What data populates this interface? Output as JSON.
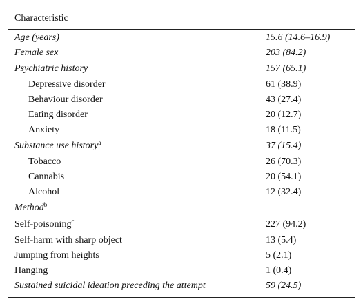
{
  "table": {
    "header": [
      "Characteristic"
    ],
    "rows": [
      {
        "label": "Age (years)",
        "value": "15.6 (14.6–16.9)"
      },
      {
        "label": "Female sex",
        "value": "203 (84.2)"
      },
      {
        "label": "Psychiatric history",
        "value": "157 (65.1)"
      },
      {
        "label": "Depressive disorder",
        "value": "61 (38.9)"
      },
      {
        "label": "Behaviour disorder",
        "value": "43 (27.4)"
      },
      {
        "label": "Eating disorder",
        "value": "20 (12.7)"
      },
      {
        "label": "Anxiety",
        "value": "18 (11.5)"
      },
      {
        "label": "Substance use history",
        "note": "a",
        "value": "37 (15.4)"
      },
      {
        "label": "Tobacco",
        "value": "26 (70.3)"
      },
      {
        "label": "Cannabis",
        "value": "20 (54.1)"
      },
      {
        "label": "Alcohol",
        "value": "12 (32.4)"
      },
      {
        "label": "Method",
        "note": "b"
      },
      {
        "label": "Self-poisoning",
        "note": "c",
        "value": "227 (94.2)"
      },
      {
        "label": "Self-harm with sharp object",
        "value": "13 (5.4)"
      },
      {
        "label": "Jumping from heights",
        "value": "5 (2.1)"
      },
      {
        "label": "Hanging",
        "value": "1 (0.4)"
      },
      {
        "label": "Sustained suicidal ideation preceding the attempt",
        "value": "59 (24.5)"
      }
    ]
  }
}
